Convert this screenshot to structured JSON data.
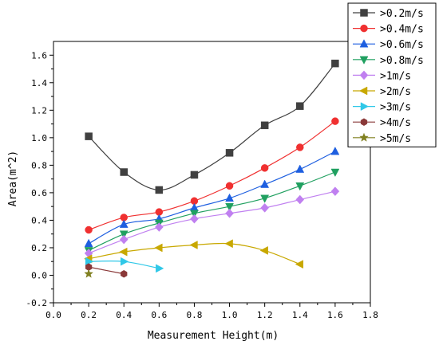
{
  "chart_data": {
    "type": "line",
    "xlabel": "Measurement Height(m)",
    "ylabel": "Area(m^2)",
    "xlim": [
      0.0,
      1.8
    ],
    "ylim": [
      -0.2,
      1.7
    ],
    "x_ticks": [
      "0.0",
      "0.2",
      "0.4",
      "0.6",
      "0.8",
      "1.0",
      "1.2",
      "1.4",
      "1.6",
      "1.8"
    ],
    "y_ticks": [
      "-0.2",
      "0.0",
      "0.2",
      "0.4",
      "0.6",
      "0.8",
      "1.0",
      "1.2",
      "1.4",
      "1.6"
    ],
    "legend_position": "top-right",
    "grid": false,
    "series": [
      {
        "name": ">0.2m/s",
        "color": "#404040",
        "marker": "square",
        "x": [
          0.2,
          0.4,
          0.6,
          0.8,
          1.0,
          1.2,
          1.4,
          1.6
        ],
        "y": [
          1.01,
          0.75,
          0.62,
          0.73,
          0.89,
          1.09,
          1.23,
          1.54
        ]
      },
      {
        "name": ">0.4m/s",
        "color": "#f03030",
        "marker": "circle",
        "x": [
          0.2,
          0.4,
          0.6,
          0.8,
          1.0,
          1.2,
          1.4,
          1.6
        ],
        "y": [
          0.33,
          0.42,
          0.46,
          0.54,
          0.65,
          0.78,
          0.93,
          1.12
        ]
      },
      {
        "name": ">0.6m/s",
        "color": "#1e5fe0",
        "marker": "triangle-up",
        "x": [
          0.2,
          0.4,
          0.6,
          0.8,
          1.0,
          1.2,
          1.4,
          1.6
        ],
        "y": [
          0.23,
          0.37,
          0.41,
          0.49,
          0.56,
          0.66,
          0.77,
          0.9
        ]
      },
      {
        "name": ">0.8m/s",
        "color": "#20a060",
        "marker": "triangle-down",
        "x": [
          0.2,
          0.4,
          0.6,
          0.8,
          1.0,
          1.2,
          1.4,
          1.6
        ],
        "y": [
          0.18,
          0.3,
          0.38,
          0.45,
          0.5,
          0.56,
          0.65,
          0.75
        ]
      },
      {
        "name": ">1m/s",
        "color": "#c080f0",
        "marker": "diamond",
        "x": [
          0.2,
          0.4,
          0.6,
          0.8,
          1.0,
          1.2,
          1.4,
          1.6
        ],
        "y": [
          0.16,
          0.26,
          0.35,
          0.41,
          0.45,
          0.49,
          0.55,
          0.61
        ]
      },
      {
        "name": ">2m/s",
        "color": "#c8a800",
        "marker": "triangle-left",
        "x": [
          0.2,
          0.4,
          0.6,
          0.8,
          1.0,
          1.2,
          1.4
        ],
        "y": [
          0.12,
          0.17,
          0.2,
          0.22,
          0.23,
          0.18,
          0.08
        ]
      },
      {
        "name": ">3m/s",
        "color": "#30c8e8",
        "marker": "triangle-right",
        "x": [
          0.2,
          0.4,
          0.6
        ],
        "y": [
          0.1,
          0.1,
          0.05
        ]
      },
      {
        "name": ">4m/s",
        "color": "#8a3838",
        "marker": "hexagon",
        "x": [
          0.2,
          0.4
        ],
        "y": [
          0.06,
          0.01
        ]
      },
      {
        "name": ">5m/s",
        "color": "#808020",
        "marker": "star",
        "x": [
          0.2
        ],
        "y": [
          0.01
        ]
      }
    ]
  }
}
